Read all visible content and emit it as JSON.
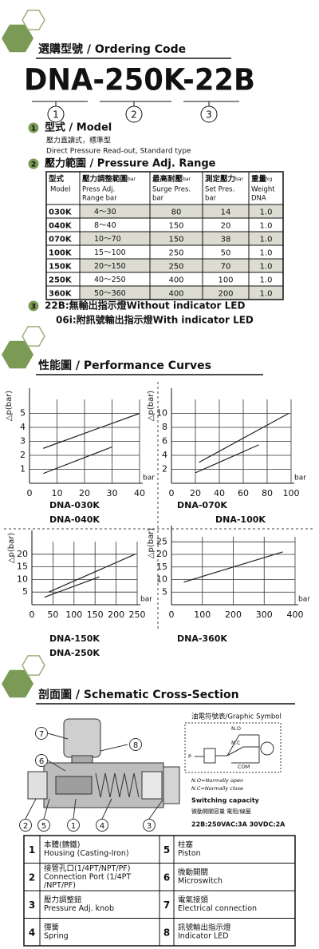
{
  "ordering": {
    "heading": "選購型號 / Ordering Code",
    "code": "DNA-250K-22B",
    "markers": [
      "1",
      "2",
      "3"
    ],
    "items": [
      {
        "number": "1",
        "title": "型式 / Model",
        "lines": [
          "壓力直讀式，標準型",
          "Direct Pressure Read-out, Standard type"
        ]
      },
      {
        "number": "2",
        "title": "壓力範圍 / Pressure Adj. Range"
      },
      {
        "number": "3",
        "lines": [
          "22B:無輸出指示燈Without indicator LED",
          "06i:附訊號輸出指示燈With indicator LED"
        ]
      }
    ]
  },
  "table": {
    "header": [
      {
        "title": "型式",
        "lines": [
          "Model"
        ]
      },
      {
        "title": "壓力調整範圍",
        "unit": "bar",
        "lines": [
          "Press Adj.",
          "Range bar"
        ]
      },
      {
        "title": "最高耐壓",
        "unit": "bar",
        "lines": [
          "Surge Pres.",
          "bar"
        ]
      },
      {
        "title": "測定壓力",
        "unit": "bar",
        "lines": [
          "Set Pres.",
          "bar"
        ]
      },
      {
        "title": "重量",
        "unit": "kg",
        "lines": [
          "Weight",
          "DNA"
        ]
      }
    ],
    "rows": [
      [
        "030K",
        "4～30",
        "80",
        "14",
        "1.0"
      ],
      [
        "040K",
        "8～40",
        "150",
        "20",
        "1.0"
      ],
      [
        "070K",
        "10～70",
        "150",
        "38",
        "1.0"
      ],
      [
        "100K",
        "15～100",
        "250",
        "50",
        "1.0"
      ],
      [
        "150K",
        "20～150",
        "250",
        "70",
        "1.0"
      ],
      [
        "250K",
        "40～250",
        "400",
        "100",
        "1.0"
      ],
      [
        "360K",
        "50～360",
        "400",
        "200",
        "1.0"
      ]
    ]
  },
  "performance": {
    "heading": "性能圖 / Performance Curves"
  },
  "chart_data": [
    {
      "type": "line",
      "y_label": "△p(bar)",
      "x_label": "bar",
      "labels": [
        "DNA-030K",
        "DNA-040K"
      ],
      "xlim": [
        0,
        40
      ],
      "ylim": [
        0,
        6
      ],
      "xticks": [
        0,
        10,
        20,
        30,
        40
      ],
      "yticks": [
        1,
        2,
        3,
        4,
        5
      ],
      "grid": true,
      "series": [
        {
          "color": "#222222",
          "x": [
            5,
            40
          ],
          "values": [
            2.5,
            5
          ]
        },
        {
          "color": "#222222",
          "x": [
            5,
            30
          ],
          "values": [
            0.7,
            2.6
          ]
        }
      ]
    },
    {
      "type": "line",
      "y_label": "△p(bar)",
      "x_label": "bar",
      "labels": [
        "DNA-070K",
        "DNA-100K"
      ],
      "xlim": [
        0,
        100
      ],
      "ylim": [
        0,
        12
      ],
      "xticks": [
        0,
        20,
        40,
        60,
        80,
        100
      ],
      "yticks": [
        2,
        4,
        6,
        8,
        10
      ],
      "grid": true,
      "series": [
        {
          "color": "#222222",
          "x": [
            23,
            98
          ],
          "values": [
            3,
            10
          ]
        },
        {
          "color": "#222222",
          "x": [
            20,
            73
          ],
          "values": [
            1.5,
            5.5
          ]
        }
      ]
    },
    {
      "type": "line",
      "y_label": "△p(bar)",
      "x_label": "bar",
      "labels": [
        "DNA-150K",
        "DNA-250K"
      ],
      "xlim": [
        0,
        250
      ],
      "ylim": [
        0,
        25
      ],
      "xticks": [
        0,
        50,
        100,
        150,
        200,
        250
      ],
      "yticks": [
        5,
        10,
        15,
        20
      ],
      "grid": true,
      "series": [
        {
          "color": "#222222",
          "x": [
            40,
            245
          ],
          "values": [
            5,
            20
          ]
        },
        {
          "color": "#222222",
          "x": [
            30,
            160
          ],
          "values": [
            3,
            11
          ]
        }
      ]
    },
    {
      "type": "line",
      "y_label": "△p(bar)",
      "x_label": "bar",
      "labels": [
        "DNA-360K"
      ],
      "xlim": [
        0,
        400
      ],
      "ylim": [
        0,
        27
      ],
      "xticks": [
        0,
        100,
        200,
        300,
        400
      ],
      "yticks": [
        5,
        10,
        15,
        20,
        25
      ],
      "grid": true,
      "series": [
        {
          "color": "#222222",
          "x": [
            40,
            360
          ],
          "values": [
            9,
            21
          ]
        }
      ]
    }
  ],
  "cross_section": {
    "heading": "剖面圖 / Schematic Cross-Section",
    "callouts": [
      "7",
      "8",
      "6",
      "2",
      "5",
      "1",
      "4",
      "3"
    ],
    "symbol": {
      "title": "油電符號表/Graphic Symbol",
      "labels": [
        "N.O",
        "N.C",
        "COM",
        "P"
      ],
      "notes": [
        "N.O=Normally open",
        "N.C=Normally close"
      ],
      "capacity_title": "Switching capacity",
      "capacity_sub": "微動開關容量 電阻/線圈",
      "capacity": "22B:250VAC:3A 30VDC:2A"
    }
  },
  "parts": [
    {
      "number": "1",
      "zh": "本體(鑄鐵)",
      "en": [
        "Housing (Casting-Iron)"
      ]
    },
    {
      "number": "2",
      "zh": "接管孔口(1/4PT/NPT/PF)",
      "en": [
        "Connection Port (1/4PT",
        "/NPT/PF)"
      ]
    },
    {
      "number": "3",
      "zh": "壓力調整鈕",
      "en": [
        "Pressure Adj. knob"
      ]
    },
    {
      "number": "4",
      "zh": "彈簧",
      "en": [
        "Spring"
      ]
    },
    {
      "number": "5",
      "zh": "柱塞",
      "en": [
        "Piston"
      ]
    },
    {
      "number": "6",
      "zh": "微動開關",
      "en": [
        "Microswitch"
      ]
    },
    {
      "number": "7",
      "zh": "電氣接頭",
      "en": [
        "Electrical connection"
      ]
    },
    {
      "number": "8",
      "zh": "訊號輸出指示燈",
      "en": [
        "Indicator LED"
      ]
    }
  ]
}
